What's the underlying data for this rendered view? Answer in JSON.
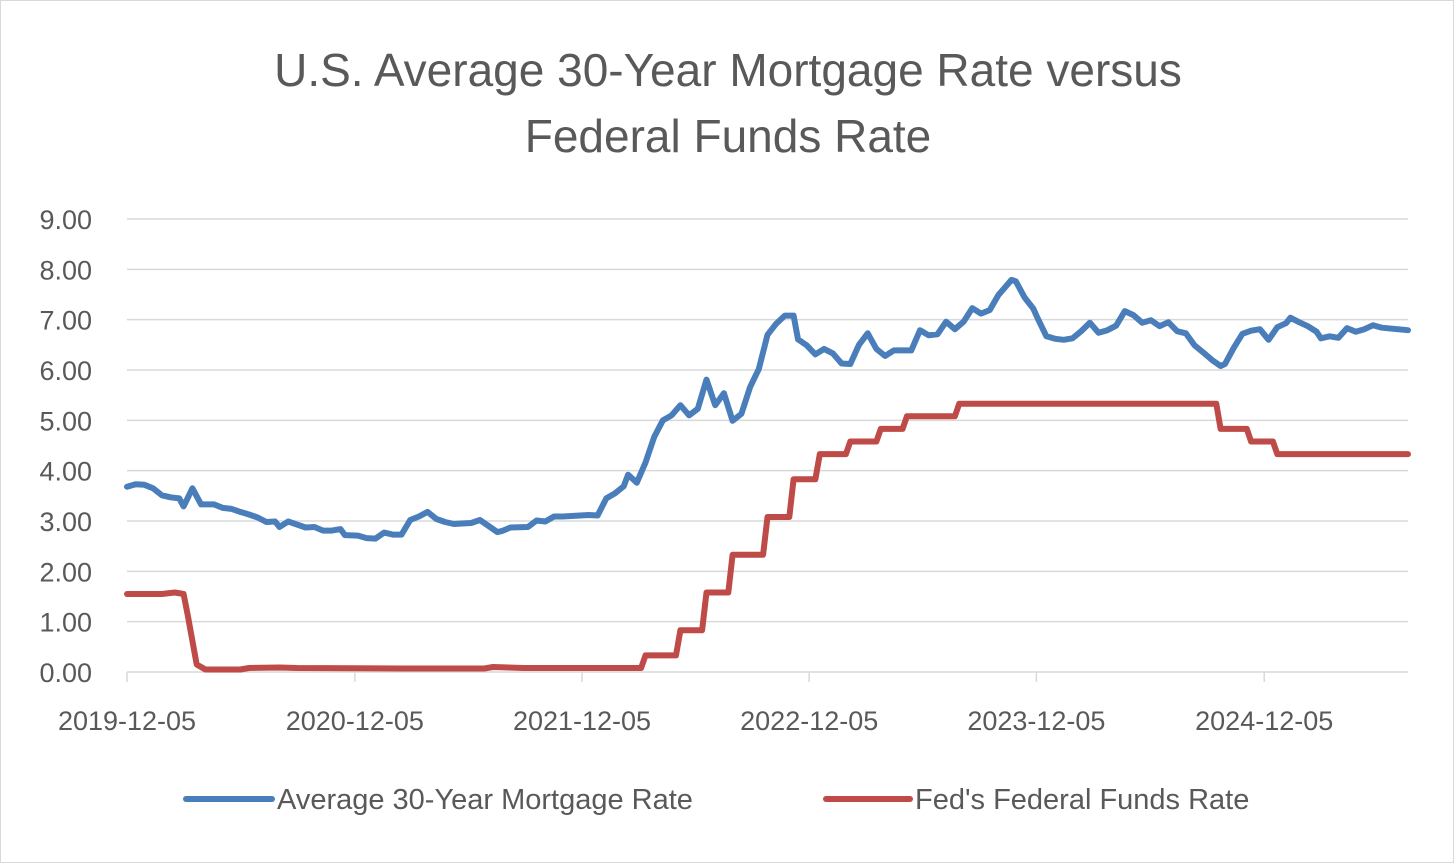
{
  "chart_data": {
    "type": "line",
    "title_lines": [
      "U.S. Average 30-Year Mortgage Rate versus",
      "Federal Funds Rate"
    ],
    "xlabel": "",
    "ylabel": "",
    "ylim": [
      0,
      9
    ],
    "y_ticks": [
      "0.00",
      "1.00",
      "2.00",
      "3.00",
      "4.00",
      "5.00",
      "6.00",
      "7.00",
      "8.00",
      "9.00"
    ],
    "x_ticks": [
      "2019-12-05",
      "2020-12-05",
      "2021-12-05",
      "2022-12-05",
      "2023-12-05",
      "2024-12-05"
    ],
    "x_range": [
      "2019-12-05",
      "2025-07-24"
    ],
    "grid": "horizontal",
    "legend_position": "bottom",
    "series": [
      {
        "name": "Average 30-Year Mortgage Rate",
        "color": "#4a7ebb",
        "points": [
          [
            "2019-12-05",
            3.68
          ],
          [
            "2019-12-19",
            3.73
          ],
          [
            "2020-01-02",
            3.72
          ],
          [
            "2020-01-16",
            3.65
          ],
          [
            "2020-01-30",
            3.51
          ],
          [
            "2020-02-13",
            3.47
          ],
          [
            "2020-02-27",
            3.45
          ],
          [
            "2020-03-05",
            3.29
          ],
          [
            "2020-03-19",
            3.65
          ],
          [
            "2020-04-02",
            3.33
          ],
          [
            "2020-04-23",
            3.33
          ],
          [
            "2020-05-07",
            3.26
          ],
          [
            "2020-05-21",
            3.24
          ],
          [
            "2020-06-04",
            3.18
          ],
          [
            "2020-06-18",
            3.13
          ],
          [
            "2020-07-02",
            3.07
          ],
          [
            "2020-07-16",
            2.98
          ],
          [
            "2020-07-30",
            2.99
          ],
          [
            "2020-08-06",
            2.88
          ],
          [
            "2020-08-20",
            2.99
          ],
          [
            "2020-09-03",
            2.93
          ],
          [
            "2020-09-17",
            2.87
          ],
          [
            "2020-10-01",
            2.88
          ],
          [
            "2020-10-15",
            2.81
          ],
          [
            "2020-10-29",
            2.81
          ],
          [
            "2020-11-12",
            2.84
          ],
          [
            "2020-11-19",
            2.72
          ],
          [
            "2020-12-10",
            2.71
          ],
          [
            "2020-12-24",
            2.66
          ],
          [
            "2021-01-07",
            2.65
          ],
          [
            "2021-01-21",
            2.77
          ],
          [
            "2021-02-04",
            2.73
          ],
          [
            "2021-02-18",
            2.73
          ],
          [
            "2021-03-04",
            3.02
          ],
          [
            "2021-03-18",
            3.09
          ],
          [
            "2021-04-01",
            3.18
          ],
          [
            "2021-04-15",
            3.04
          ],
          [
            "2021-04-29",
            2.98
          ],
          [
            "2021-05-13",
            2.94
          ],
          [
            "2021-05-27",
            2.95
          ],
          [
            "2021-06-10",
            2.96
          ],
          [
            "2021-06-24",
            3.02
          ],
          [
            "2021-07-08",
            2.9
          ],
          [
            "2021-07-22",
            2.78
          ],
          [
            "2021-07-29",
            2.8
          ],
          [
            "2021-08-12",
            2.87
          ],
          [
            "2021-09-09",
            2.88
          ],
          [
            "2021-09-23",
            3.01
          ],
          [
            "2021-10-07",
            2.99
          ],
          [
            "2021-10-21",
            3.09
          ],
          [
            "2021-11-04",
            3.09
          ],
          [
            "2021-11-18",
            3.1
          ],
          [
            "2021-12-02",
            3.11
          ],
          [
            "2021-12-16",
            3.12
          ],
          [
            "2021-12-30",
            3.11
          ],
          [
            "2022-01-13",
            3.45
          ],
          [
            "2022-01-27",
            3.55
          ],
          [
            "2022-02-10",
            3.69
          ],
          [
            "2022-02-17",
            3.92
          ],
          [
            "2022-03-03",
            3.76
          ],
          [
            "2022-03-17",
            4.16
          ],
          [
            "2022-03-31",
            4.67
          ],
          [
            "2022-04-14",
            5.0
          ],
          [
            "2022-04-28",
            5.1
          ],
          [
            "2022-05-12",
            5.3
          ],
          [
            "2022-05-26",
            5.1
          ],
          [
            "2022-06-09",
            5.23
          ],
          [
            "2022-06-23",
            5.81
          ],
          [
            "2022-07-07",
            5.3
          ],
          [
            "2022-07-21",
            5.54
          ],
          [
            "2022-08-04",
            4.99
          ],
          [
            "2022-08-18",
            5.13
          ],
          [
            "2022-09-01",
            5.66
          ],
          [
            "2022-09-15",
            6.02
          ],
          [
            "2022-09-29",
            6.7
          ],
          [
            "2022-10-13",
            6.92
          ],
          [
            "2022-10-27",
            7.08
          ],
          [
            "2022-11-10",
            7.08
          ],
          [
            "2022-11-17",
            6.61
          ],
          [
            "2022-12-01",
            6.49
          ],
          [
            "2022-12-15",
            6.31
          ],
          [
            "2022-12-29",
            6.42
          ],
          [
            "2023-01-12",
            6.33
          ],
          [
            "2023-01-26",
            6.13
          ],
          [
            "2023-02-09",
            6.12
          ],
          [
            "2023-02-23",
            6.5
          ],
          [
            "2023-03-09",
            6.73
          ],
          [
            "2023-03-23",
            6.42
          ],
          [
            "2023-04-06",
            6.28
          ],
          [
            "2023-04-20",
            6.39
          ],
          [
            "2023-05-04",
            6.39
          ],
          [
            "2023-05-18",
            6.39
          ],
          [
            "2023-06-01",
            6.79
          ],
          [
            "2023-06-15",
            6.69
          ],
          [
            "2023-06-29",
            6.71
          ],
          [
            "2023-07-13",
            6.96
          ],
          [
            "2023-07-27",
            6.81
          ],
          [
            "2023-08-10",
            6.96
          ],
          [
            "2023-08-24",
            7.23
          ],
          [
            "2023-09-07",
            7.12
          ],
          [
            "2023-09-21",
            7.19
          ],
          [
            "2023-10-05",
            7.49
          ],
          [
            "2023-10-26",
            7.79
          ],
          [
            "2023-11-02",
            7.76
          ],
          [
            "2023-11-16",
            7.44
          ],
          [
            "2023-11-30",
            7.22
          ],
          [
            "2023-12-07",
            7.03
          ],
          [
            "2023-12-21",
            6.67
          ],
          [
            "2024-01-04",
            6.62
          ],
          [
            "2024-01-18",
            6.6
          ],
          [
            "2024-02-01",
            6.63
          ],
          [
            "2024-02-15",
            6.77
          ],
          [
            "2024-02-29",
            6.94
          ],
          [
            "2024-03-14",
            6.74
          ],
          [
            "2024-03-28",
            6.79
          ],
          [
            "2024-04-11",
            6.88
          ],
          [
            "2024-04-25",
            7.17
          ],
          [
            "2024-05-09",
            7.09
          ],
          [
            "2024-05-23",
            6.94
          ],
          [
            "2024-06-06",
            6.99
          ],
          [
            "2024-06-20",
            6.87
          ],
          [
            "2024-07-04",
            6.95
          ],
          [
            "2024-07-18",
            6.77
          ],
          [
            "2024-08-01",
            6.73
          ],
          [
            "2024-08-15",
            6.49
          ],
          [
            "2024-08-29",
            6.35
          ],
          [
            "2024-09-12",
            6.2
          ],
          [
            "2024-09-26",
            6.08
          ],
          [
            "2024-10-03",
            6.12
          ],
          [
            "2024-10-17",
            6.44
          ],
          [
            "2024-10-31",
            6.72
          ],
          [
            "2024-11-14",
            6.78
          ],
          [
            "2024-11-28",
            6.81
          ],
          [
            "2024-12-12",
            6.6
          ],
          [
            "2024-12-26",
            6.85
          ],
          [
            "2025-01-09",
            6.93
          ],
          [
            "2025-01-16",
            7.04
          ],
          [
            "2025-01-30",
            6.95
          ],
          [
            "2025-02-13",
            6.87
          ],
          [
            "2025-02-27",
            6.76
          ],
          [
            "2025-03-06",
            6.63
          ],
          [
            "2025-03-20",
            6.67
          ],
          [
            "2025-04-03",
            6.64
          ],
          [
            "2025-04-17",
            6.83
          ],
          [
            "2025-05-01",
            6.76
          ],
          [
            "2025-05-15",
            6.81
          ],
          [
            "2025-05-29",
            6.89
          ],
          [
            "2025-06-12",
            6.84
          ],
          [
            "2025-07-24",
            6.79
          ]
        ]
      },
      {
        "name": "Fed's Federal Funds Rate",
        "color": "#be4b48",
        "points": [
          [
            "2019-12-05",
            1.55
          ],
          [
            "2020-01-30",
            1.55
          ],
          [
            "2020-02-20",
            1.58
          ],
          [
            "2020-03-05",
            1.55
          ],
          [
            "2020-03-12",
            1.1
          ],
          [
            "2020-03-26",
            0.15
          ],
          [
            "2020-04-09",
            0.05
          ],
          [
            "2020-06-04",
            0.05
          ],
          [
            "2020-06-18",
            0.08
          ],
          [
            "2020-08-06",
            0.09
          ],
          [
            "2020-09-03",
            0.08
          ],
          [
            "2021-02-18",
            0.07
          ],
          [
            "2021-07-01",
            0.07
          ],
          [
            "2021-07-15",
            0.1
          ],
          [
            "2021-09-02",
            0.08
          ],
          [
            "2022-03-10",
            0.08
          ],
          [
            "2022-03-17",
            0.33
          ],
          [
            "2022-05-05",
            0.33
          ],
          [
            "2022-05-12",
            0.83
          ],
          [
            "2022-06-16",
            0.83
          ],
          [
            "2022-06-23",
            1.58
          ],
          [
            "2022-07-28",
            1.58
          ],
          [
            "2022-08-04",
            2.33
          ],
          [
            "2022-09-22",
            2.33
          ],
          [
            "2022-09-29",
            3.08
          ],
          [
            "2022-11-03",
            3.08
          ],
          [
            "2022-11-10",
            3.83
          ],
          [
            "2022-12-15",
            3.83
          ],
          [
            "2022-12-22",
            4.33
          ],
          [
            "2023-02-02",
            4.33
          ],
          [
            "2023-02-09",
            4.58
          ],
          [
            "2023-03-23",
            4.58
          ],
          [
            "2023-03-30",
            4.83
          ],
          [
            "2023-05-04",
            4.83
          ],
          [
            "2023-05-11",
            5.08
          ],
          [
            "2023-07-27",
            5.08
          ],
          [
            "2023-08-03",
            5.33
          ],
          [
            "2024-09-19",
            5.33
          ],
          [
            "2024-09-26",
            4.83
          ],
          [
            "2024-11-07",
            4.83
          ],
          [
            "2024-11-14",
            4.58
          ],
          [
            "2024-12-19",
            4.58
          ],
          [
            "2024-12-26",
            4.33
          ],
          [
            "2025-07-24",
            4.33
          ]
        ]
      }
    ]
  }
}
